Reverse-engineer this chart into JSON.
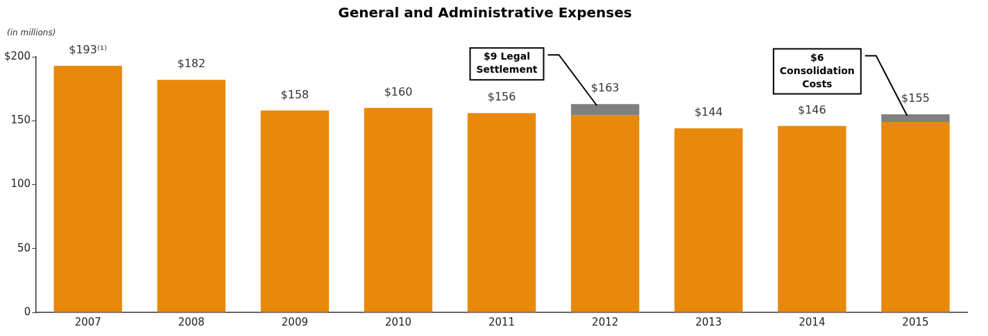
{
  "chart_data": {
    "type": "bar",
    "title": "General and Administrative Expenses",
    "ylabel": "(in millions)",
    "categories": [
      "2007",
      "2008",
      "2009",
      "2010",
      "2011",
      "2012",
      "2013",
      "2014",
      "2015"
    ],
    "stacked": true,
    "series": [
      {
        "color": "#e8890c",
        "values": [
          193,
          182,
          158,
          160,
          156,
          154,
          144,
          146,
          149
        ]
      },
      {
        "color": "#808080",
        "values": [
          null,
          null,
          null,
          null,
          null,
          9,
          null,
          null,
          6
        ]
      }
    ],
    "totals": [
      "$193⁽¹⁾",
      "$182",
      "$158",
      "$160",
      "$156",
      "$163",
      "$144",
      "$146",
      "$155"
    ],
    "ylim": [
      0,
      200
    ],
    "yticks": [
      0,
      50,
      100,
      150,
      {
        "value": 200,
        "label": "$200"
      }
    ],
    "grid": false,
    "legend": false,
    "annotations": [
      "$9 Legal Settlement",
      "$6 Consolidation Costs"
    ]
  }
}
